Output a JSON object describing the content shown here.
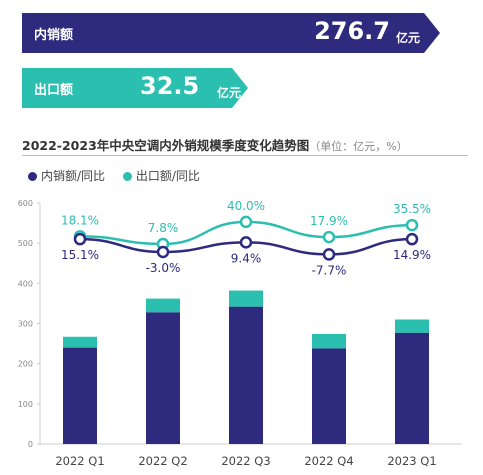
{
  "banners": {
    "domestic": {
      "label": "内销额",
      "value": "276.7",
      "unit": "亿元"
    },
    "export": {
      "label": "出口额",
      "value": "32.5",
      "unit": "亿元"
    }
  },
  "colors": {
    "domestic": "#2e2a7e",
    "export": "#2bbfb0"
  },
  "chart_data": {
    "type": "bar",
    "title": "2022-2023年中央空调内外销规模季度变化趋势图",
    "title_note": "（单位：亿元，%）",
    "categories": [
      "2022 Q1",
      "2022 Q2",
      "2022 Q3",
      "2022 Q4",
      "2023 Q1"
    ],
    "ylim": [
      0,
      600
    ],
    "yticks": [
      0,
      100,
      200,
      300,
      400,
      500,
      600
    ],
    "grid": false,
    "stacked": true,
    "legend_position": "top-left",
    "series": [
      {
        "name": "内销额/同比",
        "values": [
          240,
          328,
          342,
          238,
          277
        ],
        "line_values": [
          510,
          478,
          502,
          472,
          510
        ],
        "yoy_labels": [
          "15.1%",
          "-3.0%",
          "9.4%",
          "-7.7%",
          "14.9%"
        ]
      },
      {
        "name": "出口额/同比",
        "values": [
          27,
          34,
          40,
          36,
          33
        ],
        "line_values": [
          517,
          498,
          553,
          515,
          545
        ],
        "yoy_labels": [
          "18.1%",
          "7.8%",
          "40.0%",
          "17.9%",
          "35.5%"
        ]
      }
    ]
  }
}
